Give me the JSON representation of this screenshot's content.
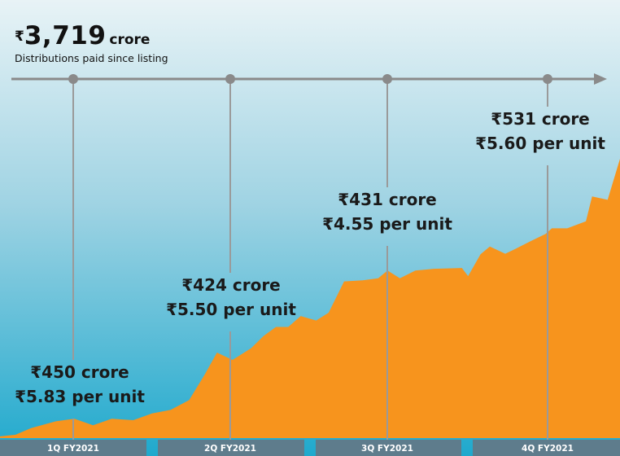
{
  "header": {
    "currency_symbol": "₹",
    "total_value": "3,719",
    "total_unit": "crore",
    "subtitle": "Distributions paid since listing"
  },
  "colors": {
    "area_fill": "#F7941D",
    "timeline": "#8A8A8A",
    "leader_line": "#9A9A9A",
    "quarter_bar": "#5E7C8C",
    "bg_top": "#E8F3F6",
    "bg_bottom": "#1FA9CD"
  },
  "chart_data": {
    "type": "area",
    "title": "₹3,719 crore",
    "subtitle": "Distributions paid since listing",
    "xlabel": "",
    "ylabel": "",
    "grid": false,
    "legend": "none",
    "x_range": [
      0,
      100
    ],
    "y_range": [
      0,
      100
    ],
    "series": [
      {
        "values": [
          [
            0,
            0.6
          ],
          [
            2.5,
            1.2
          ],
          [
            5,
            3.6
          ],
          [
            9,
            6.0
          ],
          [
            12,
            6.9
          ],
          [
            15,
            4.6
          ],
          [
            18,
            6.9
          ],
          [
            21.5,
            6.4
          ],
          [
            24.5,
            8.8
          ],
          [
            27.5,
            10.1
          ],
          [
            30.5,
            13.6
          ],
          [
            33,
            22.7
          ],
          [
            35,
            30.6
          ],
          [
            37.5,
            28.0
          ],
          [
            40.5,
            32.2
          ],
          [
            42.5,
            36.5
          ],
          [
            44.5,
            39.8
          ],
          [
            46.5,
            39.8
          ],
          [
            48.5,
            43.7
          ],
          [
            51,
            42.1
          ],
          [
            53,
            44.9
          ],
          [
            55.5,
            56.1
          ],
          [
            58.5,
            56.5
          ],
          [
            61,
            57.2
          ],
          [
            62.5,
            60.0
          ],
          [
            64.5,
            57.2
          ],
          [
            67,
            60.0
          ],
          [
            70,
            60.6
          ],
          [
            74.5,
            60.9
          ],
          [
            75.5,
            58.0
          ],
          [
            77.5,
            65.8
          ],
          [
            79,
            68.6
          ],
          [
            81.5,
            66.0
          ],
          [
            83,
            67.6
          ],
          [
            85.5,
            70.4
          ],
          [
            88,
            73.1
          ],
          [
            89,
            75.1
          ],
          [
            91.5,
            75.1
          ],
          [
            94.5,
            77.6
          ],
          [
            95.5,
            86.5
          ],
          [
            98,
            85.3
          ],
          [
            100,
            100
          ]
        ]
      }
    ],
    "quarters": [
      {
        "label": "1Q FY2021",
        "amount": "₹450 crore",
        "per_unit": "₹5.83 per unit"
      },
      {
        "label": "2Q FY2021",
        "amount": "₹424 crore",
        "per_unit": "₹5.50 per unit"
      },
      {
        "label": "3Q FY2021",
        "amount": "₹431 crore",
        "per_unit": "₹4.55 per unit"
      },
      {
        "label": "4Q FY2021",
        "amount": "₹531 crore",
        "per_unit": "₹5.60 per unit"
      }
    ]
  }
}
